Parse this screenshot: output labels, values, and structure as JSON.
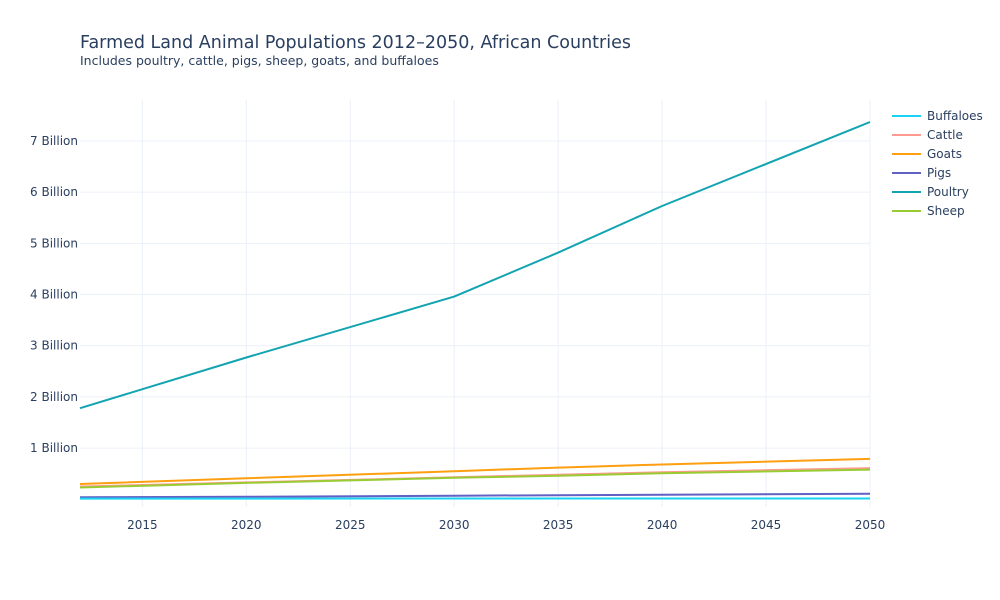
{
  "chart_data": {
    "type": "line",
    "title": "Farmed Land Animal Populations 2012–2050, African Countries",
    "subtitle": "Includes poultry, cattle, pigs, sheep, goats, and buffaloes",
    "xlabel": "",
    "ylabel": "",
    "xlim": [
      2012,
      2050
    ],
    "ylim": [
      -0.15,
      7.8
    ],
    "y_unit": "billions",
    "grid": true,
    "legend_position": "top-right",
    "x_ticks": [
      2015,
      2020,
      2025,
      2030,
      2035,
      2040,
      2045,
      2050
    ],
    "x_tick_labels": [
      "2015",
      "2020",
      "2025",
      "2030",
      "2035",
      "2040",
      "2045",
      "2050"
    ],
    "y_ticks": [
      1,
      2,
      3,
      4,
      5,
      6,
      7
    ],
    "y_tick_labels": [
      "1 Billion",
      "2 Billion",
      "3 Billion",
      "4 Billion",
      "5 Billion",
      "6 Billion",
      "7 Billion"
    ],
    "x": [
      2012,
      2020,
      2030,
      2035,
      2040,
      2050
    ],
    "series": [
      {
        "name": "Buffaloes",
        "color": "#19d3f3",
        "values": [
          0.015,
          0.015,
          0.016,
          0.016,
          0.016,
          0.016
        ]
      },
      {
        "name": "Cattle",
        "color": "#ff9a91",
        "values": [
          0.25,
          0.33,
          0.43,
          0.48,
          0.53,
          0.61
        ]
      },
      {
        "name": "Goats",
        "color": "#fe9f10",
        "values": [
          0.3,
          0.41,
          0.55,
          0.62,
          0.68,
          0.79
        ]
      },
      {
        "name": "Pigs",
        "color": "#6161c4",
        "values": [
          0.04,
          0.05,
          0.07,
          0.08,
          0.09,
          0.11
        ]
      },
      {
        "name": "Poultry",
        "color": "#12a4b1",
        "values": [
          1.78,
          2.77,
          3.96,
          4.82,
          5.73,
          7.37
        ]
      },
      {
        "name": "Sheep",
        "color": "#99cc33",
        "values": [
          0.23,
          0.32,
          0.42,
          0.46,
          0.51,
          0.58
        ]
      }
    ]
  }
}
